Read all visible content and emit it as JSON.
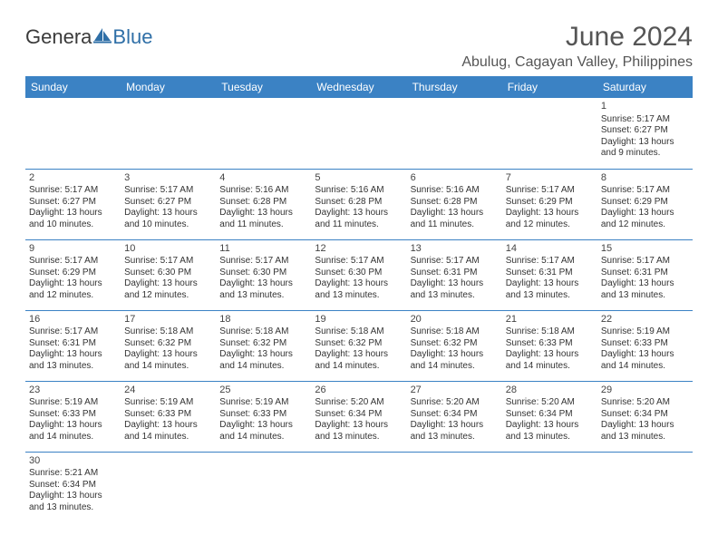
{
  "logo": {
    "part1": "Genera",
    "part2": "Blue"
  },
  "title": "June 2024",
  "location": "Abulug, Cagayan Valley, Philippines",
  "colors": {
    "header_bg": "#3b82c4",
    "header_text": "#ffffff",
    "cell_border": "#3b82c4",
    "body_text": "#333333",
    "title_text": "#555555",
    "logo_gray": "#3a3a3a",
    "logo_blue": "#2f6fa7"
  },
  "day_headers": [
    "Sunday",
    "Monday",
    "Tuesday",
    "Wednesday",
    "Thursday",
    "Friday",
    "Saturday"
  ],
  "weeks": [
    [
      null,
      null,
      null,
      null,
      null,
      null,
      {
        "n": "1",
        "sr": "Sunrise: 5:17 AM",
        "ss": "Sunset: 6:27 PM",
        "d1": "Daylight: 13 hours",
        "d2": "and 9 minutes."
      }
    ],
    [
      {
        "n": "2",
        "sr": "Sunrise: 5:17 AM",
        "ss": "Sunset: 6:27 PM",
        "d1": "Daylight: 13 hours",
        "d2": "and 10 minutes."
      },
      {
        "n": "3",
        "sr": "Sunrise: 5:17 AM",
        "ss": "Sunset: 6:27 PM",
        "d1": "Daylight: 13 hours",
        "d2": "and 10 minutes."
      },
      {
        "n": "4",
        "sr": "Sunrise: 5:16 AM",
        "ss": "Sunset: 6:28 PM",
        "d1": "Daylight: 13 hours",
        "d2": "and 11 minutes."
      },
      {
        "n": "5",
        "sr": "Sunrise: 5:16 AM",
        "ss": "Sunset: 6:28 PM",
        "d1": "Daylight: 13 hours",
        "d2": "and 11 minutes."
      },
      {
        "n": "6",
        "sr": "Sunrise: 5:16 AM",
        "ss": "Sunset: 6:28 PM",
        "d1": "Daylight: 13 hours",
        "d2": "and 11 minutes."
      },
      {
        "n": "7",
        "sr": "Sunrise: 5:17 AM",
        "ss": "Sunset: 6:29 PM",
        "d1": "Daylight: 13 hours",
        "d2": "and 12 minutes."
      },
      {
        "n": "8",
        "sr": "Sunrise: 5:17 AM",
        "ss": "Sunset: 6:29 PM",
        "d1": "Daylight: 13 hours",
        "d2": "and 12 minutes."
      }
    ],
    [
      {
        "n": "9",
        "sr": "Sunrise: 5:17 AM",
        "ss": "Sunset: 6:29 PM",
        "d1": "Daylight: 13 hours",
        "d2": "and 12 minutes."
      },
      {
        "n": "10",
        "sr": "Sunrise: 5:17 AM",
        "ss": "Sunset: 6:30 PM",
        "d1": "Daylight: 13 hours",
        "d2": "and 12 minutes."
      },
      {
        "n": "11",
        "sr": "Sunrise: 5:17 AM",
        "ss": "Sunset: 6:30 PM",
        "d1": "Daylight: 13 hours",
        "d2": "and 13 minutes."
      },
      {
        "n": "12",
        "sr": "Sunrise: 5:17 AM",
        "ss": "Sunset: 6:30 PM",
        "d1": "Daylight: 13 hours",
        "d2": "and 13 minutes."
      },
      {
        "n": "13",
        "sr": "Sunrise: 5:17 AM",
        "ss": "Sunset: 6:31 PM",
        "d1": "Daylight: 13 hours",
        "d2": "and 13 minutes."
      },
      {
        "n": "14",
        "sr": "Sunrise: 5:17 AM",
        "ss": "Sunset: 6:31 PM",
        "d1": "Daylight: 13 hours",
        "d2": "and 13 minutes."
      },
      {
        "n": "15",
        "sr": "Sunrise: 5:17 AM",
        "ss": "Sunset: 6:31 PM",
        "d1": "Daylight: 13 hours",
        "d2": "and 13 minutes."
      }
    ],
    [
      {
        "n": "16",
        "sr": "Sunrise: 5:17 AM",
        "ss": "Sunset: 6:31 PM",
        "d1": "Daylight: 13 hours",
        "d2": "and 13 minutes."
      },
      {
        "n": "17",
        "sr": "Sunrise: 5:18 AM",
        "ss": "Sunset: 6:32 PM",
        "d1": "Daylight: 13 hours",
        "d2": "and 14 minutes."
      },
      {
        "n": "18",
        "sr": "Sunrise: 5:18 AM",
        "ss": "Sunset: 6:32 PM",
        "d1": "Daylight: 13 hours",
        "d2": "and 14 minutes."
      },
      {
        "n": "19",
        "sr": "Sunrise: 5:18 AM",
        "ss": "Sunset: 6:32 PM",
        "d1": "Daylight: 13 hours",
        "d2": "and 14 minutes."
      },
      {
        "n": "20",
        "sr": "Sunrise: 5:18 AM",
        "ss": "Sunset: 6:32 PM",
        "d1": "Daylight: 13 hours",
        "d2": "and 14 minutes."
      },
      {
        "n": "21",
        "sr": "Sunrise: 5:18 AM",
        "ss": "Sunset: 6:33 PM",
        "d1": "Daylight: 13 hours",
        "d2": "and 14 minutes."
      },
      {
        "n": "22",
        "sr": "Sunrise: 5:19 AM",
        "ss": "Sunset: 6:33 PM",
        "d1": "Daylight: 13 hours",
        "d2": "and 14 minutes."
      }
    ],
    [
      {
        "n": "23",
        "sr": "Sunrise: 5:19 AM",
        "ss": "Sunset: 6:33 PM",
        "d1": "Daylight: 13 hours",
        "d2": "and 14 minutes."
      },
      {
        "n": "24",
        "sr": "Sunrise: 5:19 AM",
        "ss": "Sunset: 6:33 PM",
        "d1": "Daylight: 13 hours",
        "d2": "and 14 minutes."
      },
      {
        "n": "25",
        "sr": "Sunrise: 5:19 AM",
        "ss": "Sunset: 6:33 PM",
        "d1": "Daylight: 13 hours",
        "d2": "and 14 minutes."
      },
      {
        "n": "26",
        "sr": "Sunrise: 5:20 AM",
        "ss": "Sunset: 6:34 PM",
        "d1": "Daylight: 13 hours",
        "d2": "and 13 minutes."
      },
      {
        "n": "27",
        "sr": "Sunrise: 5:20 AM",
        "ss": "Sunset: 6:34 PM",
        "d1": "Daylight: 13 hours",
        "d2": "and 13 minutes."
      },
      {
        "n": "28",
        "sr": "Sunrise: 5:20 AM",
        "ss": "Sunset: 6:34 PM",
        "d1": "Daylight: 13 hours",
        "d2": "and 13 minutes."
      },
      {
        "n": "29",
        "sr": "Sunrise: 5:20 AM",
        "ss": "Sunset: 6:34 PM",
        "d1": "Daylight: 13 hours",
        "d2": "and 13 minutes."
      }
    ],
    [
      {
        "n": "30",
        "sr": "Sunrise: 5:21 AM",
        "ss": "Sunset: 6:34 PM",
        "d1": "Daylight: 13 hours",
        "d2": "and 13 minutes."
      },
      null,
      null,
      null,
      null,
      null,
      null
    ]
  ]
}
